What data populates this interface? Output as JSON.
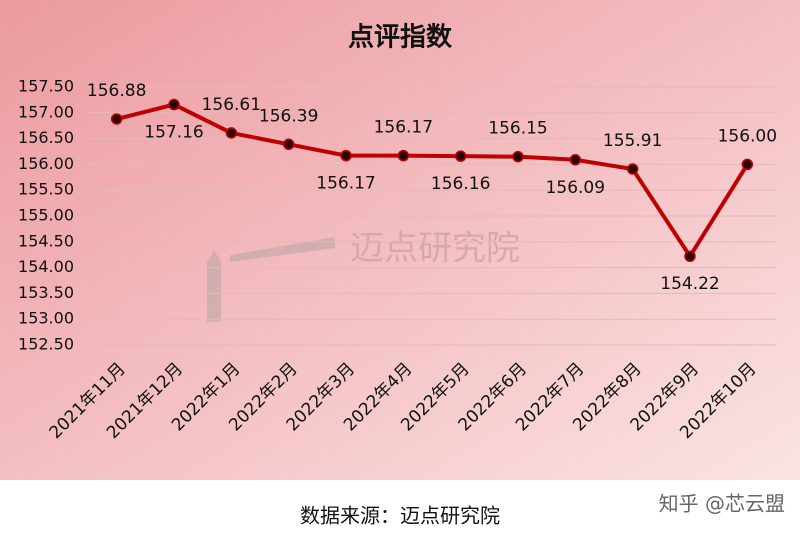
{
  "chart_data": {
    "type": "line",
    "title": "点评指数",
    "categories": [
      "2021年11月",
      "2021年12月",
      "2022年1月",
      "2022年2月",
      "2022年3月",
      "2022年4月",
      "2022年5月",
      "2022年6月",
      "2022年7月",
      "2022年8月",
      "2022年9月",
      "2022年10月"
    ],
    "series": [
      {
        "name": "点评指数",
        "color": "#c00000",
        "values": [
          156.88,
          157.16,
          156.61,
          156.39,
          156.17,
          156.17,
          156.16,
          156.15,
          156.09,
          155.91,
          154.22,
          156.0
        ],
        "value_labels": [
          "156.88",
          "157.16",
          "156.61",
          "156.39",
          "156.17",
          "156.17",
          "156.16",
          "156.15",
          "156.09",
          "155.91",
          "154.22",
          "156.00"
        ]
      }
    ],
    "ylim": [
      152.5,
      157.5
    ],
    "yticks": [
      {
        "value": 152.5,
        "label": "152.50"
      },
      {
        "value": 153,
        "label": "153.00"
      },
      {
        "value": 153.5,
        "label": "153.50"
      },
      {
        "value": 154,
        "label": "154.00"
      },
      {
        "value": 154.5,
        "label": "154.50"
      },
      {
        "value": 155,
        "label": "155.00"
      },
      {
        "value": 155.5,
        "label": "155.50"
      },
      {
        "value": 156,
        "label": "156.00"
      },
      {
        "value": 156.5,
        "label": "156.50"
      },
      {
        "value": 157,
        "label": "157.00"
      },
      {
        "value": 157.5,
        "label": "157.50"
      }
    ],
    "grid": true,
    "watermark": "迈点研究院",
    "source": "数据来源：迈点研究院",
    "credit": "知乎 @芯云盟"
  }
}
